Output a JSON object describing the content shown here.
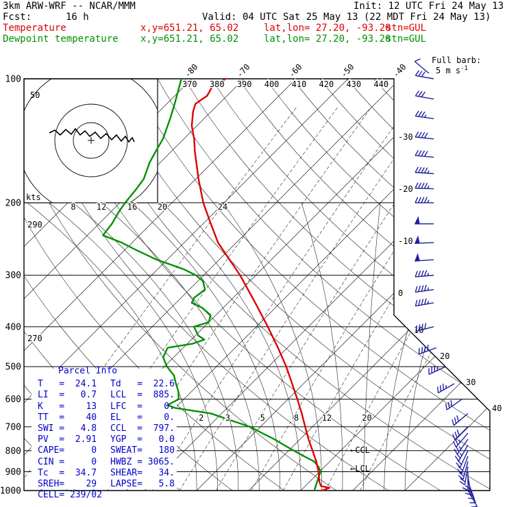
{
  "header": {
    "model": "3km ARW-WRF -- NCAR/MMM",
    "init": "Init: 12 UTC Fri 24 May 13",
    "fcst_label": "Fcst:",
    "fcst_value": "16 h",
    "valid": "Valid: 04 UTC Sat 25 May 13 (22 MDT Fri 24 May 13)",
    "temp_label": "Temperature",
    "temp_xy": "x,y=651.21, 65.02",
    "temp_latlon": "lat,lon= 27.20, -93.20",
    "temp_stn": "stn=GUL",
    "dewp_label": "Dewpoint temperature",
    "dewp_xy": "x,y=651.21, 65.02",
    "dewp_latlon": "lat,lon= 27.20, -93.20",
    "dewp_stn": "stn=GUL"
  },
  "colors": {
    "temperature": "#dd0000",
    "dewpoint": "#009000",
    "wind_barb": "#1f1f9e",
    "parcel_text": "#0000cc",
    "grid": "#000000"
  },
  "plot": {
    "pressure_ticks": [
      100,
      200,
      300,
      400,
      500,
      600,
      700,
      800,
      900,
      1000
    ],
    "top_isotherm_labels": [
      -80,
      -70,
      -60,
      -50,
      -40
    ],
    "right_isotherm_labels": [
      -30,
      -20,
      -10,
      0,
      10,
      20,
      30,
      40
    ],
    "dry_adiabat_top_labels": [
      370,
      380,
      390,
      400,
      410,
      420,
      430,
      440
    ],
    "dry_adiabat_left_labels": [
      290,
      270
    ],
    "moist_adiabat_labels": [
      8,
      12,
      16,
      20,
      24
    ],
    "mixing_ratio_labels": [
      2,
      3,
      5,
      8,
      12,
      20
    ]
  },
  "hodograph": {
    "kts_label": "kts",
    "ring_label": "50",
    "trace": [
      [
        72,
        194
      ],
      [
        80,
        190
      ],
      [
        88,
        197
      ],
      [
        96,
        189
      ],
      [
        104,
        196
      ],
      [
        110,
        188
      ],
      [
        117,
        197
      ],
      [
        124,
        191
      ],
      [
        131,
        199
      ],
      [
        139,
        193
      ],
      [
        147,
        202
      ],
      [
        155,
        195
      ],
      [
        163,
        204
      ],
      [
        170,
        197
      ],
      [
        177,
        206
      ],
      [
        183,
        199
      ],
      [
        188,
        207
      ],
      [
        193,
        201
      ],
      [
        196,
        207
      ]
    ]
  },
  "barb_legend": {
    "label": "Full barb:",
    "value": "5 m s",
    "exp": "-1"
  },
  "annotations": [
    {
      "text": "←CCL",
      "pressure": 797
    },
    {
      "text": "←LCL",
      "pressure": 885
    }
  ],
  "parcel_info": {
    "title": "Parcel Info",
    "rows": [
      [
        "T   =  24.1",
        "Td   =  22.6"
      ],
      [
        "LI  =   0.7",
        "LCL  =  885."
      ],
      [
        "K   =    13",
        "LFC  =    0."
      ],
      [
        "TT  =    40",
        "EL   =    0."
      ],
      [
        "SWI =   4.8",
        "CCL  =  797."
      ],
      [
        "PV  =  2.91",
        "YGP  =   0.0"
      ],
      [
        "CAPE=     0",
        "SWEAT=   180"
      ],
      [
        "CIN =     0",
        "HWBZ = 3065."
      ],
      [
        "Tc  =  34.7",
        "SHEAR=   34."
      ],
      [
        "SREH=    29",
        "LAPSE=   5.8"
      ],
      [
        "CELL= 239/02",
        ""
      ]
    ]
  },
  "chart_data": {
    "type": "skewt_log_p_sounding",
    "pressure_range_hPa": [
      100,
      1000
    ],
    "temperature_profile": [
      [
        1000,
        24.1
      ],
      [
        985,
        25.0
      ],
      [
        975,
        23.0
      ],
      [
        950,
        21.8
      ],
      [
        925,
        20.8
      ],
      [
        900,
        19.8
      ],
      [
        850,
        17.4
      ],
      [
        800,
        14.6
      ],
      [
        750,
        11.6
      ],
      [
        700,
        8.6
      ],
      [
        650,
        5.4
      ],
      [
        600,
        1.8
      ],
      [
        550,
        -2.2
      ],
      [
        500,
        -6.6
      ],
      [
        450,
        -11.8
      ],
      [
        400,
        -17.8
      ],
      [
        350,
        -24.8
      ],
      [
        300,
        -33.0
      ],
      [
        250,
        -43.5
      ],
      [
        225,
        -48.5
      ],
      [
        200,
        -54.0
      ],
      [
        175,
        -59.5
      ],
      [
        150,
        -65.5
      ],
      [
        140,
        -68.0
      ],
      [
        130,
        -71.0
      ],
      [
        120,
        -73.5
      ],
      [
        115,
        -74.5
      ],
      [
        110,
        -73.8
      ],
      [
        105,
        -74.5
      ],
      [
        100,
        -73.5
      ]
    ],
    "dewpoint_profile": [
      [
        1000,
        22.6
      ],
      [
        975,
        22.0
      ],
      [
        950,
        21.4
      ],
      [
        925,
        20.8
      ],
      [
        900,
        20.2
      ],
      [
        875,
        18.8
      ],
      [
        850,
        17.0
      ],
      [
        825,
        14.0
      ],
      [
        800,
        11.0
      ],
      [
        775,
        8.0
      ],
      [
        750,
        5.0
      ],
      [
        725,
        1.5
      ],
      [
        700,
        -2.0
      ],
      [
        675,
        -7.0
      ],
      [
        650,
        -12.0
      ],
      [
        630,
        -20.0
      ],
      [
        620,
        -22.0
      ],
      [
        600,
        -21.0
      ],
      [
        575,
        -22.5
      ],
      [
        550,
        -24.5
      ],
      [
        525,
        -26.5
      ],
      [
        500,
        -29.5
      ],
      [
        475,
        -32.0
      ],
      [
        450,
        -33.0
      ],
      [
        440,
        -29.0
      ],
      [
        430,
        -27.5
      ],
      [
        420,
        -29.5
      ],
      [
        400,
        -32.0
      ],
      [
        390,
        -30.0
      ],
      [
        375,
        -31.0
      ],
      [
        360,
        -34.0
      ],
      [
        350,
        -37.0
      ],
      [
        340,
        -37.5
      ],
      [
        325,
        -37.0
      ],
      [
        310,
        -39.0
      ],
      [
        300,
        -41.5
      ],
      [
        290,
        -45.0
      ],
      [
        275,
        -52.0
      ],
      [
        260,
        -58.0
      ],
      [
        250,
        -62.0
      ],
      [
        240,
        -67.0
      ],
      [
        225,
        -67.5
      ],
      [
        210,
        -68.5
      ],
      [
        200,
        -69.0
      ],
      [
        185,
        -69.5
      ],
      [
        175,
        -70.0
      ],
      [
        160,
        -72.0
      ],
      [
        150,
        -73.0
      ],
      [
        140,
        -74.0
      ],
      [
        125,
        -76.5
      ],
      [
        115,
        -78.5
      ],
      [
        100,
        -82.0
      ]
    ],
    "winds_p_speed_dir": [
      [
        1000,
        5,
        150
      ],
      [
        975,
        6,
        155
      ],
      [
        950,
        7.5,
        160
      ],
      [
        925,
        7.5,
        170
      ],
      [
        900,
        9,
        180
      ],
      [
        875,
        10,
        190
      ],
      [
        850,
        10,
        195
      ],
      [
        825,
        10,
        200
      ],
      [
        800,
        11,
        205
      ],
      [
        775,
        12.5,
        210
      ],
      [
        750,
        12.5,
        215
      ],
      [
        725,
        13,
        220
      ],
      [
        700,
        15,
        225
      ],
      [
        650,
        15,
        230
      ],
      [
        600,
        15,
        235
      ],
      [
        550,
        17.5,
        240
      ],
      [
        500,
        18,
        245
      ],
      [
        450,
        20,
        250
      ],
      [
        400,
        20,
        255
      ],
      [
        350,
        22.5,
        260
      ],
      [
        325,
        22.5,
        262
      ],
      [
        300,
        23,
        265
      ],
      [
        275,
        25,
        266
      ],
      [
        250,
        25,
        268
      ],
      [
        225,
        25,
        270
      ],
      [
        200,
        23,
        270
      ],
      [
        185,
        22.5,
        272
      ],
      [
        170,
        22.5,
        274
      ],
      [
        155,
        21,
        275
      ],
      [
        140,
        20,
        276
      ],
      [
        125,
        17.5,
        278
      ],
      [
        112,
        16,
        280
      ],
      [
        100,
        15,
        280
      ]
    ],
    "indices": {
      "T": 24.1,
      "Td": 22.6,
      "LI": 0.7,
      "LCL": 885,
      "K": 13,
      "LFC": 0,
      "TT": 40,
      "EL": 0,
      "SWI": 4.8,
      "CCL": 797,
      "PV": 2.91,
      "YGP": 0.0,
      "CAPE": 0,
      "SWEAT": 180,
      "CIN": 0,
      "HWBZ": 3065,
      "Tc": 34.7,
      "SHEAR": 34,
      "SREH": 29,
      "LAPSE": 5.8,
      "CELL": "239/02"
    }
  }
}
